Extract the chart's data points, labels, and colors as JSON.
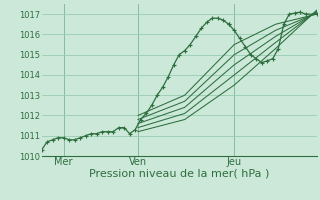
{
  "bg_color": "#cce8d8",
  "grid_color": "#99ccb4",
  "line_color": "#2d6e3e",
  "xlabel": "Pression niveau de la mer( hPa )",
  "xlabel_fontsize": 8,
  "ylim": [
    1010.0,
    1017.5
  ],
  "yticks": [
    1010,
    1011,
    1012,
    1013,
    1014,
    1015,
    1016,
    1017
  ],
  "day_labels": [
    "Mer",
    "Ven",
    "Jeu"
  ],
  "day_positions": [
    0.08,
    0.35,
    0.7
  ],
  "vline_positions": [
    0.08,
    0.35,
    0.7
  ],
  "main_line": {
    "x": [
      0.0,
      0.02,
      0.04,
      0.06,
      0.08,
      0.1,
      0.12,
      0.14,
      0.16,
      0.18,
      0.2,
      0.22,
      0.24,
      0.26,
      0.28,
      0.3,
      0.32,
      0.34,
      0.36,
      0.38,
      0.4,
      0.42,
      0.44,
      0.46,
      0.48,
      0.5,
      0.52,
      0.54,
      0.56,
      0.58,
      0.6,
      0.62,
      0.64,
      0.66,
      0.68
    ],
    "y": [
      1010.3,
      1010.7,
      1010.8,
      1010.9,
      1010.9,
      1010.8,
      1010.8,
      1010.9,
      1011.0,
      1011.1,
      1011.1,
      1011.2,
      1011.2,
      1011.2,
      1011.4,
      1011.4,
      1011.1,
      1011.3,
      1011.8,
      1012.1,
      1012.5,
      1013.0,
      1013.4,
      1013.9,
      1014.5,
      1015.0,
      1015.2,
      1015.5,
      1015.9,
      1016.3,
      1016.6,
      1016.8,
      1016.8,
      1016.7,
      1016.5
    ]
  },
  "peak_line": {
    "x": [
      0.68,
      0.7,
      0.72,
      0.74,
      0.76,
      0.78,
      0.8,
      0.82,
      0.84,
      0.86,
      0.88,
      0.9,
      0.92,
      0.94,
      0.96,
      1.0
    ],
    "y": [
      1016.5,
      1016.2,
      1015.8,
      1015.4,
      1015.0,
      1014.8,
      1014.6,
      1014.7,
      1014.8,
      1015.3,
      1016.5,
      1017.0,
      1017.05,
      1017.1,
      1017.0,
      1017.0
    ]
  },
  "forecast_lines": [
    {
      "x": [
        0.35,
        0.52,
        0.7,
        0.85,
        1.0
      ],
      "y": [
        1012.0,
        1013.0,
        1015.5,
        1016.5,
        1017.0
      ]
    },
    {
      "x": [
        0.35,
        0.52,
        0.7,
        0.85,
        1.0
      ],
      "y": [
        1011.8,
        1012.7,
        1015.0,
        1016.2,
        1017.05
      ]
    },
    {
      "x": [
        0.35,
        0.52,
        0.7,
        0.85,
        1.0
      ],
      "y": [
        1011.6,
        1012.4,
        1014.5,
        1015.9,
        1017.1
      ]
    },
    {
      "x": [
        0.35,
        0.52,
        0.7,
        0.85,
        1.0
      ],
      "y": [
        1011.4,
        1012.1,
        1014.0,
        1015.6,
        1017.15
      ]
    },
    {
      "x": [
        0.35,
        0.52,
        0.7,
        0.85,
        1.0
      ],
      "y": [
        1011.2,
        1011.8,
        1013.5,
        1015.3,
        1017.2
      ]
    }
  ]
}
